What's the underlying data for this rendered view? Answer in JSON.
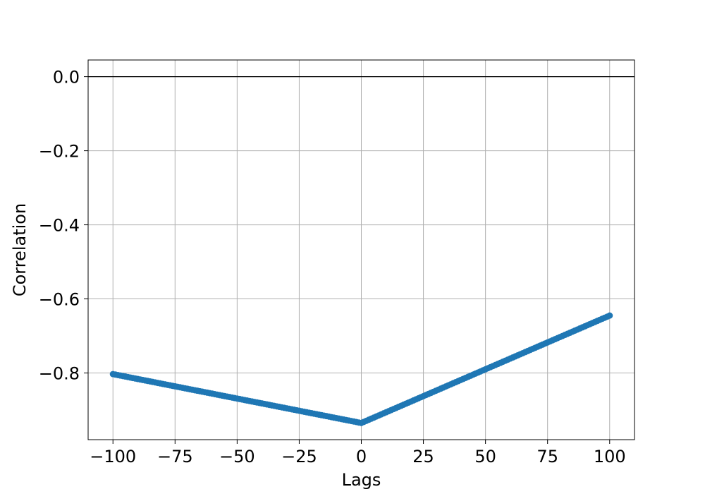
{
  "chart_data": {
    "type": "scatter",
    "title": "",
    "xlabel": "Lags",
    "ylabel": "Correlation",
    "xlim": [
      -110,
      110
    ],
    "ylim": [
      -0.98,
      0.045
    ],
    "xticks": [
      -100,
      -75,
      -50,
      -25,
      0,
      25,
      50,
      75,
      100
    ],
    "xtick_labels": [
      "−100",
      "−75",
      "−50",
      "−25",
      "0",
      "25",
      "50",
      "75",
      "100"
    ],
    "yticks": [
      0.0,
      -0.2,
      -0.4,
      -0.6,
      -0.8
    ],
    "ytick_labels": [
      "0.0",
      "−0.2",
      "−0.4",
      "−0.6",
      "−0.8"
    ],
    "grid": true,
    "reference_line_y": 0.0,
    "series": [
      {
        "color": "#1f77b4",
        "description_points": "one point per integer lag from -100 to 100",
        "x": [
          -100,
          0,
          100
        ],
        "y": [
          -0.803,
          -0.935,
          -0.645
        ]
      }
    ]
  }
}
